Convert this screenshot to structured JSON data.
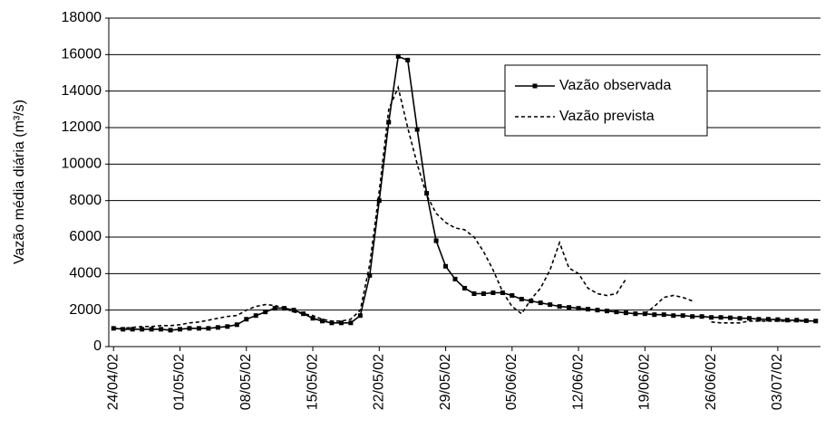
{
  "chart_data": {
    "type": "line",
    "y_label": "Vazão média diária (m³/s)",
    "categories": [
      "24/04/02",
      null,
      null,
      null,
      null,
      null,
      null,
      "01/05/02",
      null,
      null,
      null,
      null,
      null,
      null,
      "08/05/02",
      null,
      null,
      null,
      null,
      null,
      null,
      "15/05/02",
      null,
      null,
      null,
      null,
      null,
      null,
      "22/05/02",
      null,
      null,
      null,
      null,
      null,
      null,
      "29/05/02",
      null,
      null,
      null,
      null,
      null,
      null,
      "05/06/02",
      null,
      null,
      null,
      null,
      null,
      null,
      "12/06/02",
      null,
      null,
      null,
      null,
      null,
      null,
      "19/06/02",
      null,
      null,
      null,
      null,
      null,
      null,
      "26/06/02",
      null,
      null,
      null,
      null,
      null,
      null,
      "03/07/02",
      null,
      null,
      null,
      null
    ],
    "series": [
      {
        "name": "Vazão observada",
        "color": "#000000",
        "style": "solid",
        "marker": true,
        "values": [
          1000,
          950,
          950,
          950,
          950,
          950,
          900,
          950,
          1000,
          1000,
          1000,
          1050,
          1100,
          1200,
          1500,
          1700,
          1900,
          2100,
          2100,
          2000,
          1800,
          1550,
          1400,
          1300,
          1300,
          1300,
          1700,
          3900,
          8000,
          12300,
          15900,
          15700,
          11900,
          8400,
          5800,
          4400,
          3700,
          3200,
          2900,
          2900,
          2950,
          2950,
          2800,
          2600,
          2500,
          2400,
          2300,
          2200,
          2150,
          2100,
          2050,
          2000,
          1950,
          1900,
          1850,
          1800,
          1800,
          1750,
          1750,
          1700,
          1700,
          1650,
          1650,
          1600,
          1600,
          1580,
          1550,
          1550,
          1500,
          1500,
          1480,
          1450,
          1450,
          1420,
          1400
        ]
      },
      {
        "name": "Vazão prevista",
        "color": "#000000",
        "style": "dashed",
        "marker": false,
        "values": [
          1000,
          1000,
          1050,
          1100,
          1100,
          1150,
          1150,
          1200,
          1300,
          1350,
          1450,
          1550,
          1650,
          1700,
          2000,
          2200,
          2300,
          2250,
          2100,
          1900,
          1800,
          1700,
          1500,
          1400,
          1400,
          1500,
          2000,
          4500,
          8500,
          13000,
          14200,
          12000,
          10000,
          8300,
          7300,
          6800,
          6500,
          6400,
          6000,
          5200,
          4200,
          3000,
          2200,
          1800,
          2600,
          3200,
          4200,
          5700,
          4300,
          4000,
          3200,
          2900,
          2800,
          2900,
          3700,
          null,
          1800,
          2200,
          2700,
          2800,
          2700,
          2500,
          null,
          1350,
          1300,
          1300,
          1300,
          1400,
          1400,
          1400,
          1400,
          1400,
          1400,
          1400,
          1400
        ]
      }
    ],
    "ylim": [
      0,
      18000
    ],
    "yticks": [
      0,
      2000,
      4000,
      6000,
      8000,
      10000,
      12000,
      14000,
      16000,
      18000
    ],
    "grid": true
  }
}
